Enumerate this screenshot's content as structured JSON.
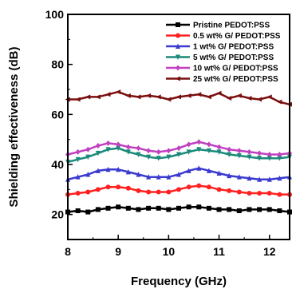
{
  "chart_data": {
    "type": "line",
    "title": "",
    "xlabel": "Frequency (GHz)",
    "ylabel": "Shielding effectiveness (dB)",
    "xlim": [
      8,
      12.4
    ],
    "ylim": [
      10,
      100
    ],
    "x_ticks": [
      8,
      9,
      10,
      11,
      12
    ],
    "y_ticks": [
      20,
      40,
      60,
      80,
      100
    ],
    "legend_position": "top-right",
    "grid": false,
    "x": [
      8.0,
      8.2,
      8.4,
      8.6,
      8.8,
      9.0,
      9.2,
      9.4,
      9.6,
      9.8,
      10.0,
      10.2,
      10.4,
      10.6,
      10.8,
      11.0,
      11.2,
      11.4,
      11.6,
      11.8,
      12.0,
      12.2,
      12.4
    ],
    "series": [
      {
        "name": "Pristine PEDOT:PSS",
        "color": "#000000",
        "marker": "square",
        "values": [
          21,
          21.5,
          21,
          22,
          22.5,
          23,
          22.5,
          22,
          22.5,
          22.5,
          22,
          22.5,
          23,
          23,
          22.5,
          22,
          22,
          21.5,
          22,
          22,
          22,
          21.5,
          21
        ]
      },
      {
        "name": "0.5 wt% G/ PEDOT:PSS",
        "color": "#ff2020",
        "marker": "circle",
        "values": [
          28,
          28.5,
          29,
          30,
          31,
          31,
          30.5,
          29.5,
          29,
          29,
          29,
          30,
          31,
          31.5,
          31,
          30,
          29.5,
          29,
          28.5,
          28.5,
          28.5,
          28,
          28
        ]
      },
      {
        "name": "1 wt% G/ PEDOT:PSS",
        "color": "#3a3ad0",
        "marker": "triangle",
        "values": [
          34,
          35,
          36,
          37.5,
          38,
          38,
          37,
          36,
          35,
          35,
          35,
          36,
          37.5,
          38.5,
          37.5,
          36.5,
          35.5,
          35,
          34.5,
          34,
          34,
          34.5,
          35
        ]
      },
      {
        "name": "5 wt% G/ PEDOT:PSS",
        "color": "#1a8a7a",
        "marker": "triangle-down",
        "values": [
          41,
          42,
          43,
          44.5,
          46,
          46.5,
          45,
          44,
          43,
          42.5,
          43,
          44,
          45,
          46,
          45.5,
          45,
          44,
          43.5,
          43,
          42.5,
          42.5,
          42.5,
          43
        ]
      },
      {
        "name": "10 wt% G/ PEDOT:PSS",
        "color": "#c040c0",
        "marker": "diamond",
        "values": [
          44,
          45,
          46,
          47.5,
          48.5,
          48,
          47,
          46.5,
          45.5,
          45,
          45.5,
          46.5,
          48,
          49,
          48,
          47,
          46,
          45.5,
          45,
          44.5,
          44,
          44,
          44.5
        ]
      },
      {
        "name": "25 wt% G/ PEDOT:PSS",
        "color": "#7a0f0f",
        "marker": "triangle-left",
        "values": [
          66,
          66,
          67,
          67,
          68,
          69,
          67.5,
          67,
          67.5,
          67,
          66,
          67,
          67.5,
          68,
          67,
          68.5,
          66.5,
          67.5,
          66.5,
          66,
          67,
          65,
          64
        ]
      }
    ]
  }
}
